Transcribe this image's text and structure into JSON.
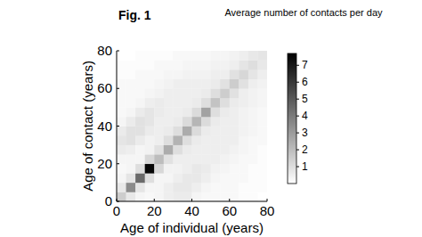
{
  "chart_data": {
    "type": "heatmap",
    "title": "Fig. 1",
    "x_label": "Age of individual (years)",
    "y_label": "Age of contact (years)",
    "bins": [
      0,
      5,
      10,
      15,
      20,
      25,
      30,
      35,
      40,
      45,
      50,
      55,
      60,
      65,
      70,
      75,
      80
    ],
    "xlim": [
      0,
      80
    ],
    "ylim": [
      0,
      80
    ],
    "xticks": [
      0,
      20,
      40,
      60,
      80
    ],
    "yticks": [
      0,
      20,
      40,
      60,
      80
    ],
    "cells": [
      [
        1.5,
        0.7,
        0.3,
        0.2,
        0.3,
        0.5,
        0.6,
        0.6,
        0.3,
        0.2,
        0.2,
        0.2,
        0.2,
        0.1,
        0.1,
        0.0
      ],
      [
        0.7,
        3.5,
        0.8,
        0.3,
        0.3,
        0.5,
        0.7,
        0.7,
        0.5,
        0.3,
        0.2,
        0.2,
        0.2,
        0.1,
        0.1,
        0.1
      ],
      [
        0.3,
        0.8,
        4.5,
        1.0,
        0.3,
        0.3,
        0.5,
        0.7,
        0.7,
        0.5,
        0.3,
        0.2,
        0.2,
        0.2,
        0.1,
        0.1
      ],
      [
        0.2,
        0.3,
        1.0,
        7.5,
        1.2,
        0.4,
        0.4,
        0.5,
        0.7,
        0.6,
        0.4,
        0.3,
        0.2,
        0.2,
        0.1,
        0.1
      ],
      [
        0.3,
        0.3,
        0.3,
        1.2,
        2.0,
        0.9,
        0.5,
        0.5,
        0.5,
        0.5,
        0.5,
        0.4,
        0.3,
        0.2,
        0.2,
        0.1
      ],
      [
        0.6,
        0.5,
        0.3,
        0.4,
        0.9,
        2.5,
        1.0,
        0.6,
        0.5,
        0.5,
        0.5,
        0.5,
        0.4,
        0.3,
        0.2,
        0.1
      ],
      [
        0.8,
        0.9,
        0.6,
        0.4,
        0.5,
        1.0,
        2.3,
        1.0,
        0.6,
        0.5,
        0.5,
        0.5,
        0.5,
        0.3,
        0.2,
        0.2
      ],
      [
        0.6,
        0.9,
        0.9,
        0.6,
        0.5,
        0.6,
        1.0,
        2.5,
        1.1,
        0.6,
        0.5,
        0.5,
        0.5,
        0.4,
        0.3,
        0.2
      ],
      [
        0.3,
        0.6,
        0.9,
        0.8,
        0.5,
        0.5,
        0.6,
        1.1,
        2.2,
        1.1,
        0.6,
        0.5,
        0.5,
        0.4,
        0.3,
        0.2
      ],
      [
        0.2,
        0.3,
        0.6,
        0.8,
        0.6,
        0.5,
        0.5,
        0.6,
        1.1,
        2.8,
        1.0,
        0.6,
        0.5,
        0.4,
        0.3,
        0.2
      ],
      [
        0.2,
        0.2,
        0.3,
        0.5,
        0.6,
        0.5,
        0.5,
        0.5,
        0.6,
        1.0,
        1.8,
        1.0,
        0.6,
        0.5,
        0.4,
        0.3
      ],
      [
        0.2,
        0.2,
        0.2,
        0.3,
        0.4,
        0.5,
        0.5,
        0.5,
        0.5,
        0.6,
        1.0,
        1.5,
        0.9,
        0.5,
        0.4,
        0.3
      ],
      [
        0.2,
        0.2,
        0.2,
        0.2,
        0.3,
        0.4,
        0.5,
        0.5,
        0.5,
        0.5,
        0.6,
        0.9,
        1.5,
        0.9,
        0.5,
        0.4
      ],
      [
        0.1,
        0.1,
        0.2,
        0.2,
        0.2,
        0.3,
        0.3,
        0.4,
        0.4,
        0.4,
        0.5,
        0.5,
        0.9,
        1.2,
        0.8,
        0.5
      ],
      [
        0.1,
        0.1,
        0.1,
        0.1,
        0.2,
        0.2,
        0.2,
        0.3,
        0.3,
        0.3,
        0.4,
        0.4,
        0.5,
        0.8,
        1.0,
        0.7
      ],
      [
        0.0,
        0.0,
        0.1,
        0.1,
        0.1,
        0.1,
        0.2,
        0.2,
        0.2,
        0.2,
        0.3,
        0.3,
        0.4,
        0.5,
        0.7,
        0.8
      ]
    ],
    "colorbar_label": "Average number of contacts per day",
    "colorbar_lim": [
      0,
      7.7
    ],
    "colorbar_ticks": [
      1,
      2,
      3,
      4,
      5,
      6,
      7
    ]
  }
}
